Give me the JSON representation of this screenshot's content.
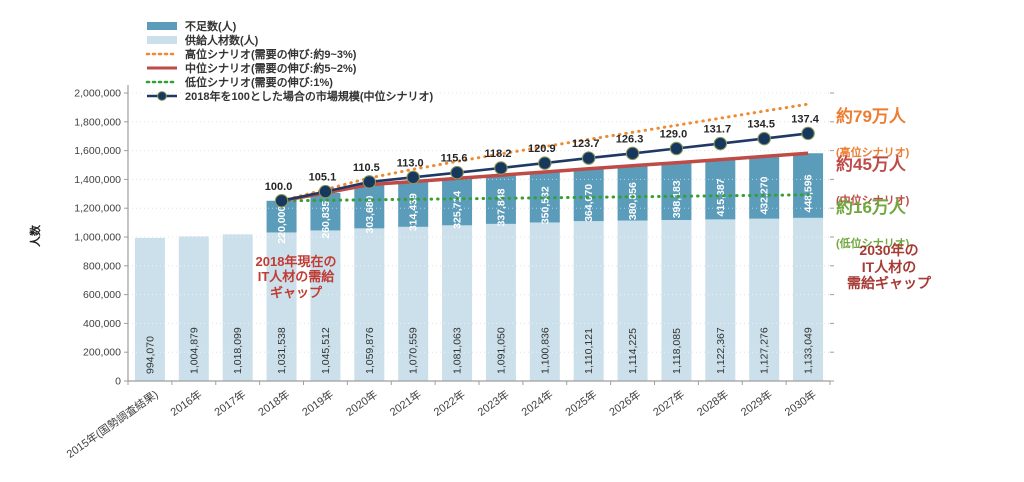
{
  "colors": {
    "bar_dark": "#5C9CBB",
    "bar_light": "#CBE0EA",
    "line_high": "#EF8A33",
    "line_mid": "#BE4B45",
    "line_low": "#33A033",
    "line_index": "#1F3864",
    "marker_fill": "#17375E",
    "marker_ring": "#8A9A5B",
    "grid": "#C9C9C9",
    "axis": "#9E9E9E",
    "tick_text": "#404040",
    "supply_label": "#333333",
    "shortage_label": "#FFFFFF",
    "index_label": "#262626",
    "ann_high": "#ED7D31",
    "ann_mid": "#BE4B48",
    "ann_low": "#70A83F",
    "ann_gap2030": "#A63B35",
    "ann_gap2018": "#C13B34"
  },
  "y_axis": {
    "title": "人数",
    "min": 0,
    "max": 2000000,
    "step": 200000,
    "tick_labels": [
      "0",
      "200,000",
      "400,000",
      "600,000",
      "800,000",
      "1,000,000",
      "1,200,000",
      "1,400,000",
      "1,600,000",
      "1,800,000",
      "2,000,000"
    ]
  },
  "legend": {
    "items": [
      {
        "label": "不足数(人)",
        "swatch": "bar",
        "color": "#5C9CBB"
      },
      {
        "label": "供給人材数(人)",
        "swatch": "bar",
        "color": "#CBE0EA"
      },
      {
        "label": "高位シナリオ(需要の伸び:約9~3%)",
        "swatch": "dotted",
        "color": "#EF8A33"
      },
      {
        "label": "中位シナリオ(需要の伸び:約5~2%)",
        "swatch": "solid",
        "color": "#BE4B45"
      },
      {
        "label": "低位シナリオ(需要の伸び:1%)",
        "swatch": "dotted",
        "color": "#33A033"
      },
      {
        "label": "2018年を100とした場合の市場規模(中位シナリオ)",
        "swatch": "marker",
        "color": "#1F3864"
      }
    ]
  },
  "annotations": {
    "gap_2018": "2018年現在の\nIT人材の需給\nギャップ",
    "high_value": "約79万人",
    "high_sub": "(高位シナリオ)",
    "mid_value": "約45万人",
    "mid_sub": "(中位シナリオ)",
    "low_value": "約16万人",
    "low_sub": "(低位シナリオ)",
    "gap_2030": "2030年の\nIT人材の\n需給ギャップ"
  },
  "chart_data": {
    "type": "bar",
    "subtype": "stacked-bars-with-lines",
    "title": "",
    "xlabel": "",
    "ylabel": "人数",
    "ylim": [
      0,
      2000000
    ],
    "grid": true,
    "legend_position": "top-left",
    "categories": [
      "2015年(国勢調査結果)",
      "2016年",
      "2017年",
      "2018年",
      "2019年",
      "2020年",
      "2021年",
      "2022年",
      "2023年",
      "2024年",
      "2025年",
      "2026年",
      "2027年",
      "2028年",
      "2029年",
      "2030年"
    ],
    "series": [
      {
        "name": "供給人材数(人)",
        "type": "bar",
        "stack": "total",
        "values": [
          994070,
          1004879,
          1018099,
          1031538,
          1045512,
          1059876,
          1070559,
          1081063,
          1091050,
          1100836,
          1110121,
          1114225,
          1118085,
          1122367,
          1127276,
          1133049
        ],
        "labels": [
          "994,070",
          "1,004,879",
          "1,018,099",
          "1,031,538",
          "1,045,512",
          "1,059,876",
          "1,070,559",
          "1,081,063",
          "1,091,050",
          "1,100,836",
          "1,110,121",
          "1,114,225",
          "1,118,085",
          "1,122,367",
          "1,127,276",
          "1,133,049"
        ]
      },
      {
        "name": "不足数(人)",
        "type": "bar",
        "stack": "total",
        "values": [
          null,
          null,
          null,
          220000,
          260835,
          303680,
          314439,
          325714,
          337848,
          350532,
          364070,
          380856,
          398183,
          415387,
          432270,
          448596
        ],
        "labels": [
          null,
          null,
          null,
          "220,000",
          "260,835",
          "303,680",
          "314,439",
          "325,714",
          "337,848",
          "350,532",
          "364,070",
          "380,856",
          "398,183",
          "415,387",
          "432,270",
          "448,596"
        ]
      },
      {
        "name": "高位シナリオ(需要の伸び:約9~3%)",
        "type": "line",
        "style": "dotted",
        "note": "values estimated from plot; 2030 = supply + about 790,000",
        "values": [
          null,
          null,
          null,
          1251538,
          1330000,
          1410000,
          1470000,
          1525000,
          1577000,
          1628000,
          1678000,
          1727000,
          1776000,
          1825000,
          1874000,
          1923000
        ]
      },
      {
        "name": "中位シナリオ(需要の伸び:約5~2%)",
        "type": "line",
        "style": "solid",
        "values": [
          null,
          null,
          null,
          1251538,
          1306347,
          1363556,
          1384998,
          1406777,
          1428898,
          1451368,
          1474191,
          1495081,
          1516268,
          1537754,
          1559546,
          1581645
        ]
      },
      {
        "name": "低位シナリオ(需要の伸び:1%)",
        "type": "line",
        "style": "dotted",
        "note": "values estimated from plot; 2030 = supply + about 160,000",
        "values": [
          null,
          null,
          null,
          1251538,
          1255000,
          1258500,
          1262000,
          1265500,
          1269000,
          1272400,
          1275900,
          1279400,
          1282900,
          1286300,
          1289800,
          1293000
        ]
      },
      {
        "name": "2018年を100とした場合の市場規模(中位シナリオ)",
        "type": "line",
        "style": "marker",
        "index_values": [
          100.0,
          105.1,
          110.5,
          113.0,
          115.6,
          118.2,
          120.9,
          123.7,
          126.3,
          129.0,
          131.7,
          134.5,
          137.4
        ],
        "index_labels": [
          "100.0",
          "105.1",
          "110.5",
          "113.0",
          "115.6",
          "118.2",
          "120.9",
          "123.7",
          "126.3",
          "129.0",
          "131.7",
          "134.5",
          "137.4"
        ],
        "values": [
          null,
          null,
          null,
          1251538,
          1315367,
          1382950,
          1414238,
          1446778,
          1479318,
          1513110,
          1548153,
          1580692,
          1614484,
          1648275,
          1683319,
          1719613
        ]
      }
    ]
  }
}
